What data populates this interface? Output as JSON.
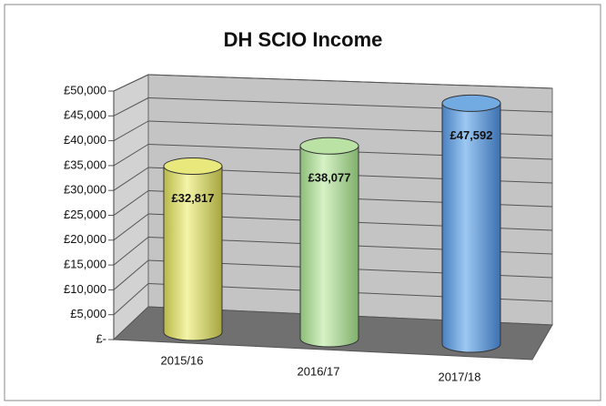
{
  "chart_data": {
    "type": "bar",
    "title": "DH SCIO Income",
    "categories": [
      "2015/16",
      "2016/17",
      "2017/18"
    ],
    "values": [
      32817,
      38077,
      47592
    ],
    "value_labels": [
      "£32,817",
      "£38,077",
      "£47,592"
    ],
    "colors": [
      "#e8e87c",
      "#b9e2a4",
      "#72aae2"
    ],
    "ylim": [
      0,
      50000
    ],
    "yticks": [
      {
        "value": 0,
        "label": "£-"
      },
      {
        "value": 5000,
        "label": "£5,000"
      },
      {
        "value": 10000,
        "label": "£10,000"
      },
      {
        "value": 15000,
        "label": "£15,000"
      },
      {
        "value": 20000,
        "label": "£20,000"
      },
      {
        "value": 25000,
        "label": "£25,000"
      },
      {
        "value": 30000,
        "label": "£30,000"
      },
      {
        "value": 35000,
        "label": "£35,000"
      },
      {
        "value": 40000,
        "label": "£40,000"
      },
      {
        "value": 45000,
        "label": "£45,000"
      },
      {
        "value": 50000,
        "label": "£50,000"
      }
    ],
    "grid": true
  }
}
